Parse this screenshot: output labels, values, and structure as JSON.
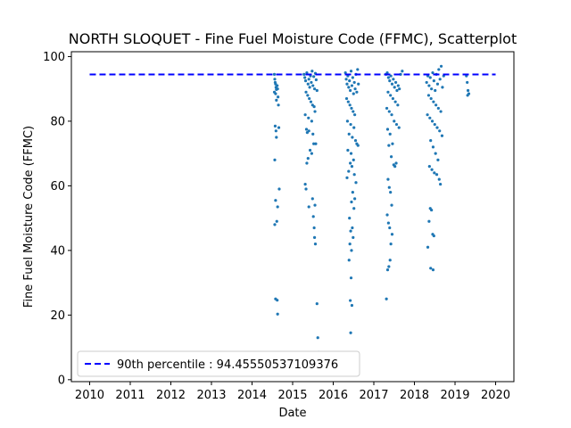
{
  "chart_data": {
    "type": "scatter",
    "title": "NORTH SLOQUET - Fine Fuel Moisture Code (FFMC), Scatterplot",
    "xlabel": "Date",
    "ylabel": "Fine Fuel Moisture Code (FFMC)",
    "xlim": [
      2009.55,
      2020.45
    ],
    "ylim": [
      -0.6,
      101.5
    ],
    "x_ticks": [
      2010,
      2011,
      2012,
      2013,
      2014,
      2015,
      2016,
      2017,
      2018,
      2019,
      2020
    ],
    "y_ticks": [
      0,
      20,
      40,
      60,
      80,
      100
    ],
    "grid": false,
    "legend_position": "lower-left",
    "point_color": "#1f77b4",
    "threshold_color": "#0000ff",
    "threshold": {
      "label": "90th percentile : 94.45550537109376",
      "value": 94.4555,
      "x_start": 2010,
      "x_end": 2020
    },
    "series": [
      {
        "points": [
          [
            2014.55,
            94.5
          ],
          [
            2014.56,
            93.0
          ],
          [
            2014.57,
            92.0
          ],
          [
            2014.58,
            91.5
          ],
          [
            2014.59,
            90.5
          ],
          [
            2014.6,
            89.8
          ],
          [
            2014.55,
            89.0
          ],
          [
            2014.62,
            91.0
          ],
          [
            2014.63,
            90.0
          ],
          [
            2014.58,
            88.5
          ],
          [
            2014.64,
            87.5
          ],
          [
            2014.6,
            86.5
          ],
          [
            2014.65,
            85.0
          ],
          [
            2014.57,
            78.5
          ],
          [
            2014.59,
            77.0
          ],
          [
            2014.66,
            78.0
          ],
          [
            2014.6,
            75.0
          ],
          [
            2014.56,
            68.0
          ],
          [
            2014.67,
            59.0
          ],
          [
            2014.58,
            55.5
          ],
          [
            2014.63,
            53.5
          ],
          [
            2014.61,
            49.0
          ],
          [
            2014.56,
            48.0
          ],
          [
            2014.58,
            25.0
          ],
          [
            2014.62,
            24.6
          ],
          [
            2014.63,
            20.3
          ],
          [
            2015.28,
            94.5
          ],
          [
            2015.3,
            93.5
          ],
          [
            2015.32,
            92.5
          ],
          [
            2015.35,
            95.0
          ],
          [
            2015.38,
            91.5
          ],
          [
            2015.4,
            93.0
          ],
          [
            2015.42,
            90.5
          ],
          [
            2015.44,
            94.0
          ],
          [
            2015.46,
            92.0
          ],
          [
            2015.48,
            95.5
          ],
          [
            2015.5,
            91.0
          ],
          [
            2015.52,
            93.8
          ],
          [
            2015.54,
            90.0
          ],
          [
            2015.56,
            94.8
          ],
          [
            2015.58,
            92.8
          ],
          [
            2015.6,
            89.5
          ],
          [
            2015.33,
            89.0
          ],
          [
            2015.37,
            88.0
          ],
          [
            2015.41,
            87.0
          ],
          [
            2015.45,
            86.0
          ],
          [
            2015.49,
            85.0
          ],
          [
            2015.53,
            84.5
          ],
          [
            2015.31,
            82.0
          ],
          [
            2015.39,
            81.0
          ],
          [
            2015.47,
            80.0
          ],
          [
            2015.55,
            83.0
          ],
          [
            2015.34,
            77.5
          ],
          [
            2015.4,
            77.0
          ],
          [
            2015.36,
            76.5
          ],
          [
            2015.5,
            76.0
          ],
          [
            2015.52,
            73.0
          ],
          [
            2015.57,
            73.0
          ],
          [
            2015.43,
            71.0
          ],
          [
            2015.47,
            70.0
          ],
          [
            2015.38,
            68.5
          ],
          [
            2015.35,
            67.0
          ],
          [
            2015.31,
            60.5
          ],
          [
            2015.33,
            59.0
          ],
          [
            2015.49,
            56.0
          ],
          [
            2015.55,
            54.0
          ],
          [
            2015.4,
            53.5
          ],
          [
            2015.51,
            50.5
          ],
          [
            2015.53,
            47.0
          ],
          [
            2015.54,
            44.0
          ],
          [
            2015.56,
            42.0
          ],
          [
            2015.6,
            23.5
          ],
          [
            2015.62,
            13.0
          ],
          [
            2015.64,
            8.5
          ],
          [
            2016.3,
            95.0
          ],
          [
            2016.32,
            93.0
          ],
          [
            2016.34,
            91.5
          ],
          [
            2016.36,
            94.0
          ],
          [
            2016.38,
            90.5
          ],
          [
            2016.4,
            92.5
          ],
          [
            2016.42,
            89.5
          ],
          [
            2016.44,
            95.5
          ],
          [
            2016.46,
            91.0
          ],
          [
            2016.48,
            93.5
          ],
          [
            2016.5,
            88.5
          ],
          [
            2016.52,
            92.0
          ],
          [
            2016.54,
            90.0
          ],
          [
            2016.56,
            94.5
          ],
          [
            2016.58,
            89.0
          ],
          [
            2016.6,
            96.0
          ],
          [
            2016.62,
            91.5
          ],
          [
            2016.33,
            87.0
          ],
          [
            2016.37,
            86.0
          ],
          [
            2016.41,
            85.0
          ],
          [
            2016.45,
            84.0
          ],
          [
            2016.49,
            83.0
          ],
          [
            2016.53,
            82.0
          ],
          [
            2016.35,
            80.0
          ],
          [
            2016.43,
            79.0
          ],
          [
            2016.51,
            78.0
          ],
          [
            2016.39,
            76.0
          ],
          [
            2016.47,
            75.0
          ],
          [
            2016.55,
            74.0
          ],
          [
            2016.58,
            73.0
          ],
          [
            2016.61,
            72.5
          ],
          [
            2016.36,
            71.0
          ],
          [
            2016.44,
            70.0
          ],
          [
            2016.5,
            68.0
          ],
          [
            2016.42,
            67.0
          ],
          [
            2016.46,
            66.0
          ],
          [
            2016.38,
            64.5
          ],
          [
            2016.52,
            63.5
          ],
          [
            2016.34,
            62.5
          ],
          [
            2016.56,
            61.0
          ],
          [
            2016.48,
            58.0
          ],
          [
            2016.53,
            56.0
          ],
          [
            2016.45,
            55.0
          ],
          [
            2016.51,
            53.0
          ],
          [
            2016.4,
            50.0
          ],
          [
            2016.47,
            47.0
          ],
          [
            2016.43,
            46.0
          ],
          [
            2016.49,
            44.0
          ],
          [
            2016.41,
            42.0
          ],
          [
            2016.45,
            40.0
          ],
          [
            2016.39,
            37.0
          ],
          [
            2016.44,
            31.5
          ],
          [
            2016.42,
            24.5
          ],
          [
            2016.46,
            23.0
          ],
          [
            2016.43,
            14.5
          ],
          [
            2017.3,
            94.5
          ],
          [
            2017.33,
            95.0
          ],
          [
            2017.36,
            93.5
          ],
          [
            2017.39,
            92.5
          ],
          [
            2017.42,
            94.0
          ],
          [
            2017.45,
            91.5
          ],
          [
            2017.48,
            93.0
          ],
          [
            2017.51,
            90.5
          ],
          [
            2017.54,
            92.0
          ],
          [
            2017.57,
            89.5
          ],
          [
            2017.6,
            91.0
          ],
          [
            2017.63,
            90.0
          ],
          [
            2017.66,
            94.5
          ],
          [
            2017.7,
            95.5
          ],
          [
            2017.35,
            89.0
          ],
          [
            2017.41,
            88.0
          ],
          [
            2017.47,
            87.0
          ],
          [
            2017.53,
            86.0
          ],
          [
            2017.59,
            85.0
          ],
          [
            2017.32,
            84.0
          ],
          [
            2017.38,
            83.0
          ],
          [
            2017.44,
            82.0
          ],
          [
            2017.5,
            80.0
          ],
          [
            2017.56,
            79.0
          ],
          [
            2017.62,
            78.0
          ],
          [
            2017.34,
            77.5
          ],
          [
            2017.4,
            76.0
          ],
          [
            2017.46,
            73.0
          ],
          [
            2017.37,
            72.5
          ],
          [
            2017.43,
            69.0
          ],
          [
            2017.49,
            66.5
          ],
          [
            2017.52,
            66.0
          ],
          [
            2017.55,
            67.0
          ],
          [
            2017.35,
            62.0
          ],
          [
            2017.38,
            59.5
          ],
          [
            2017.41,
            58.0
          ],
          [
            2017.44,
            54.0
          ],
          [
            2017.33,
            51.0
          ],
          [
            2017.36,
            48.5
          ],
          [
            2017.39,
            47.0
          ],
          [
            2017.45,
            45.0
          ],
          [
            2017.42,
            42.0
          ],
          [
            2017.4,
            37.0
          ],
          [
            2017.37,
            35.0
          ],
          [
            2017.34,
            34.0
          ],
          [
            2017.31,
            25.0
          ],
          [
            2018.3,
            92.0
          ],
          [
            2018.33,
            94.0
          ],
          [
            2018.36,
            91.0
          ],
          [
            2018.39,
            93.5
          ],
          [
            2018.42,
            90.0
          ],
          [
            2018.45,
            95.0
          ],
          [
            2018.48,
            92.5
          ],
          [
            2018.51,
            89.5
          ],
          [
            2018.54,
            94.5
          ],
          [
            2018.57,
            91.5
          ],
          [
            2018.6,
            96.0
          ],
          [
            2018.63,
            93.0
          ],
          [
            2018.66,
            97.0
          ],
          [
            2018.69,
            90.5
          ],
          [
            2018.72,
            94.0
          ],
          [
            2018.35,
            88.0
          ],
          [
            2018.41,
            87.0
          ],
          [
            2018.47,
            86.0
          ],
          [
            2018.53,
            85.0
          ],
          [
            2018.59,
            84.0
          ],
          [
            2018.65,
            83.0
          ],
          [
            2018.32,
            82.0
          ],
          [
            2018.38,
            81.0
          ],
          [
            2018.44,
            80.0
          ],
          [
            2018.5,
            79.0
          ],
          [
            2018.56,
            78.0
          ],
          [
            2018.62,
            77.0
          ],
          [
            2018.68,
            75.5
          ],
          [
            2018.4,
            74.0
          ],
          [
            2018.46,
            72.0
          ],
          [
            2018.52,
            70.0
          ],
          [
            2018.58,
            68.0
          ],
          [
            2018.37,
            66.0
          ],
          [
            2018.43,
            65.0
          ],
          [
            2018.49,
            64.0
          ],
          [
            2018.55,
            63.5
          ],
          [
            2018.61,
            62.0
          ],
          [
            2018.64,
            60.5
          ],
          [
            2018.39,
            53.0
          ],
          [
            2018.42,
            52.5
          ],
          [
            2018.36,
            49.0
          ],
          [
            2018.45,
            45.0
          ],
          [
            2018.48,
            44.5
          ],
          [
            2018.33,
            41.0
          ],
          [
            2018.4,
            34.5
          ],
          [
            2018.46,
            34.0
          ],
          [
            2019.28,
            94.0
          ],
          [
            2019.3,
            92.0
          ],
          [
            2019.32,
            89.5
          ],
          [
            2019.34,
            88.5
          ],
          [
            2019.31,
            88.0
          ]
        ]
      }
    ]
  }
}
